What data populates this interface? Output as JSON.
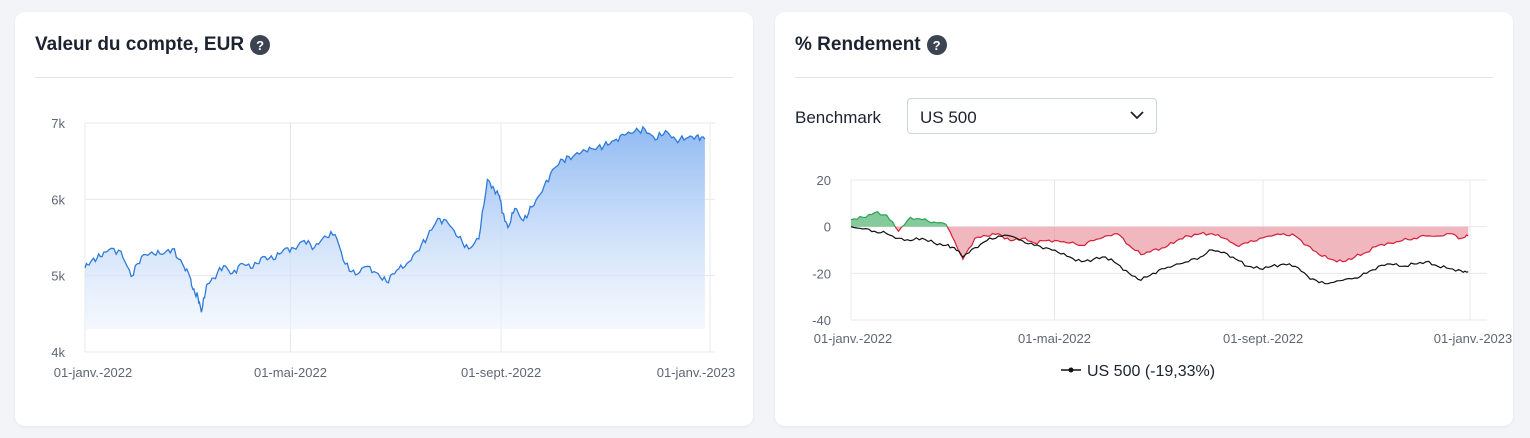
{
  "left_card": {
    "title": "Valeur du compte, EUR",
    "help_icon": "question-circle-icon"
  },
  "right_card": {
    "title": "% Rendement",
    "help_icon": "question-circle-icon",
    "benchmark_label": "Benchmark",
    "benchmark_value": "US 500",
    "dropdown_icon": "chevron-down-icon"
  },
  "chart_data": [
    {
      "type": "area",
      "title": "Valeur du compte, EUR",
      "x_ticks": [
        "01-janv.-2022",
        "01-mai-2022",
        "01-sept.-2022",
        "01-janv.-2023"
      ],
      "y_ticks": [
        "4k",
        "5k",
        "6k",
        "7k"
      ],
      "ylim": [
        4000,
        7000
      ],
      "xlim": [
        "2022-01-01",
        "2023-01-01"
      ],
      "grid": true,
      "colors": {
        "line": "#2f7ad9",
        "fill_top": "#8ab6f2",
        "fill_bottom": "#eef4fd"
      },
      "series": [
        {
          "x": [
            "2022-01-01",
            "2022-01-05",
            "2022-01-10",
            "2022-01-15",
            "2022-01-22",
            "2022-01-28",
            "2022-02-03",
            "2022-02-09",
            "2022-02-15",
            "2022-02-21",
            "2022-02-27",
            "2022-03-03",
            "2022-03-05",
            "2022-03-08",
            "2022-03-10",
            "2022-03-13",
            "2022-03-17",
            "2022-03-23",
            "2022-03-28",
            "2022-04-03",
            "2022-04-09",
            "2022-04-15",
            "2022-04-21",
            "2022-04-27",
            "2022-05-03",
            "2022-05-09",
            "2022-05-15",
            "2022-05-21",
            "2022-05-27",
            "2022-06-02",
            "2022-06-08",
            "2022-06-14",
            "2022-06-20",
            "2022-06-26",
            "2022-07-02",
            "2022-07-08",
            "2022-07-14",
            "2022-07-20",
            "2022-07-26",
            "2022-08-01",
            "2022-08-07",
            "2022-08-13",
            "2022-08-19",
            "2022-08-24",
            "2022-08-28",
            "2022-08-31",
            "2022-09-02",
            "2022-09-05",
            "2022-09-09",
            "2022-09-14",
            "2022-09-19",
            "2022-09-25",
            "2022-10-01",
            "2022-10-07",
            "2022-10-13",
            "2022-10-19",
            "2022-10-25",
            "2022-10-31",
            "2022-11-06",
            "2022-11-12",
            "2022-11-18",
            "2022-11-24",
            "2022-11-30",
            "2022-12-06",
            "2022-12-12",
            "2022-12-18",
            "2022-12-24",
            "2022-12-29"
          ],
          "values": [
            5100,
            5200,
            5250,
            5340,
            5320,
            4990,
            5250,
            5310,
            5280,
            5350,
            5150,
            5000,
            4820,
            4720,
            4520,
            4880,
            4970,
            5130,
            5030,
            5160,
            5100,
            5250,
            5210,
            5340,
            5360,
            5460,
            5370,
            5520,
            5540,
            5150,
            5010,
            5120,
            5040,
            4920,
            5070,
            5160,
            5320,
            5510,
            5750,
            5690,
            5500,
            5350,
            5480,
            6260,
            6130,
            6050,
            5820,
            5630,
            5880,
            5720,
            5900,
            6100,
            6390,
            6520,
            6560,
            6650,
            6660,
            6700,
            6770,
            6840,
            6890,
            6920,
            6780,
            6900,
            6780,
            6800,
            6830,
            6790
          ]
        }
      ]
    },
    {
      "type": "line",
      "title": "% Rendement",
      "x_ticks": [
        "01-janv.-2022",
        "01-mai-2022",
        "01-sept.-2022",
        "01-janv.-2023"
      ],
      "y_ticks": [
        "20",
        "0",
        "-20",
        "-40"
      ],
      "ylim": [
        -40,
        20
      ],
      "xlim": [
        "2022-01-01",
        "2023-01-01"
      ],
      "grid": true,
      "legend": "bottom-center",
      "colors": {
        "portfolio_positive": "#2ea356",
        "portfolio_negative": "#d31f36",
        "benchmark": "#111111"
      },
      "series": [
        {
          "x": [
            "2022-01-01",
            "2022-01-08",
            "2022-01-15",
            "2022-01-22",
            "2022-01-29",
            "2022-02-05",
            "2022-02-12",
            "2022-02-19",
            "2022-02-26",
            "2022-03-03",
            "2022-03-08",
            "2022-03-15",
            "2022-03-22",
            "2022-03-29",
            "2022-04-05",
            "2022-04-12",
            "2022-04-19",
            "2022-04-26",
            "2022-05-03",
            "2022-05-10",
            "2022-05-17",
            "2022-05-24",
            "2022-05-31",
            "2022-06-07",
            "2022-06-14",
            "2022-06-21",
            "2022-06-28",
            "2022-07-05",
            "2022-07-12",
            "2022-07-19",
            "2022-07-26",
            "2022-08-02",
            "2022-08-09",
            "2022-08-16",
            "2022-08-23",
            "2022-08-30",
            "2022-09-06",
            "2022-09-13",
            "2022-09-20",
            "2022-09-27",
            "2022-10-04",
            "2022-10-11",
            "2022-10-18",
            "2022-10-25",
            "2022-11-01",
            "2022-11-08",
            "2022-11-15",
            "2022-11-22",
            "2022-11-29",
            "2022-12-06",
            "2022-12-13",
            "2022-12-20",
            "2022-12-27",
            "2022-12-31"
          ],
          "values": [
            3,
            4,
            6,
            5,
            -2,
            4,
            3,
            2,
            1,
            -6,
            -14,
            -5,
            -4,
            -3,
            -6,
            -5,
            -7,
            -6,
            -6,
            -7,
            -8,
            -6,
            -4,
            -3,
            -8,
            -12,
            -10,
            -9,
            -6,
            -4,
            -3,
            -3,
            -5,
            -8,
            -7,
            -5,
            -4,
            -3,
            -4,
            -8,
            -12,
            -14,
            -15,
            -13,
            -11,
            -8,
            -7,
            -6,
            -5,
            -4,
            -4,
            -3,
            -5,
            -4
          ]
        },
        {
          "name": "US 500 (-19,33%)",
          "x": [
            "2022-01-01",
            "2022-01-08",
            "2022-01-15",
            "2022-01-22",
            "2022-01-29",
            "2022-02-05",
            "2022-02-12",
            "2022-02-19",
            "2022-02-26",
            "2022-03-03",
            "2022-03-08",
            "2022-03-15",
            "2022-03-22",
            "2022-03-29",
            "2022-04-05",
            "2022-04-12",
            "2022-04-19",
            "2022-04-26",
            "2022-05-03",
            "2022-05-10",
            "2022-05-17",
            "2022-05-24",
            "2022-05-31",
            "2022-06-07",
            "2022-06-14",
            "2022-06-21",
            "2022-06-28",
            "2022-07-05",
            "2022-07-12",
            "2022-07-19",
            "2022-07-26",
            "2022-08-02",
            "2022-08-09",
            "2022-08-16",
            "2022-08-23",
            "2022-08-30",
            "2022-09-06",
            "2022-09-13",
            "2022-09-20",
            "2022-09-27",
            "2022-10-04",
            "2022-10-11",
            "2022-10-18",
            "2022-10-25",
            "2022-11-01",
            "2022-11-08",
            "2022-11-15",
            "2022-11-22",
            "2022-11-29",
            "2022-12-06",
            "2022-12-13",
            "2022-12-20",
            "2022-12-27",
            "2022-12-31"
          ],
          "values": [
            0,
            -1,
            -2,
            -3,
            -5,
            -6,
            -5,
            -7,
            -8,
            -9,
            -13,
            -9,
            -6,
            -4,
            -4,
            -6,
            -8,
            -9,
            -11,
            -13,
            -15,
            -14,
            -13,
            -16,
            -20,
            -23,
            -20,
            -18,
            -16,
            -15,
            -13,
            -10,
            -11,
            -14,
            -17,
            -18,
            -17,
            -16,
            -17,
            -21,
            -24,
            -24,
            -23,
            -22,
            -20,
            -17,
            -16,
            -17,
            -16,
            -15,
            -17,
            -18,
            -19,
            -19.33
          ]
        }
      ]
    }
  ]
}
